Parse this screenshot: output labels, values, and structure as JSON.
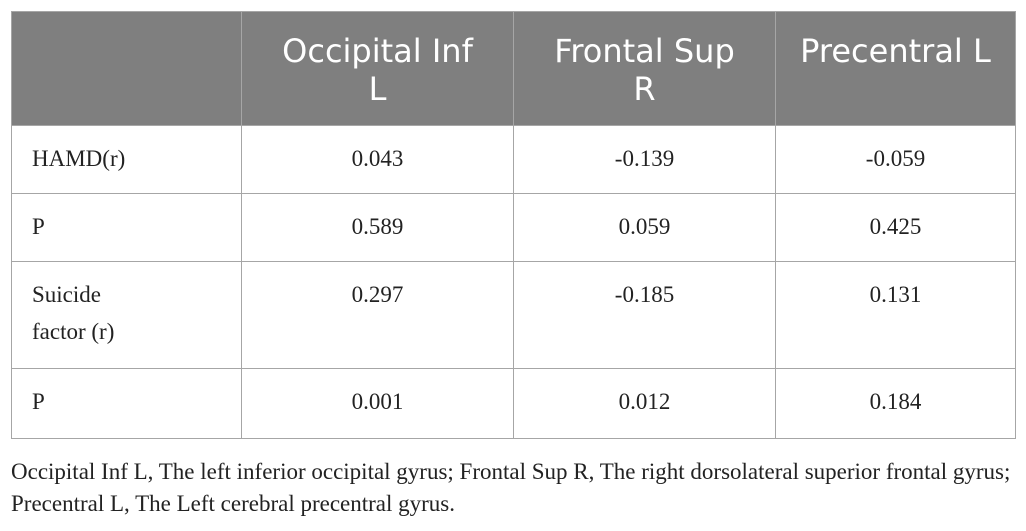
{
  "table": {
    "header": [
      "",
      "Occipital Inf L",
      "Frontal Sup R",
      "Precentral L"
    ],
    "rows": [
      {
        "label": "HAMD(r)",
        "values": [
          "0.043",
          "-0.139",
          "-0.059"
        ]
      },
      {
        "label": "P",
        "values": [
          "0.589",
          "0.059",
          "0.425"
        ]
      },
      {
        "label": "Suicide factor (r)",
        "values": [
          "0.297",
          "-0.185",
          "0.131"
        ]
      },
      {
        "label": "P",
        "values": [
          "0.001",
          "0.012",
          "0.184"
        ]
      }
    ]
  },
  "footnote": "Occipital Inf L, The left inferior occipital gyrus; Frontal Sup R, The right dorsolateral superior frontal gyrus; Precentral L, The Left cerebral precentral gyrus.",
  "colors": {
    "header_background": "#7f7f7f",
    "header_text": "#ffffff",
    "border": "#a6a6a6",
    "body_text": "#222222"
  }
}
